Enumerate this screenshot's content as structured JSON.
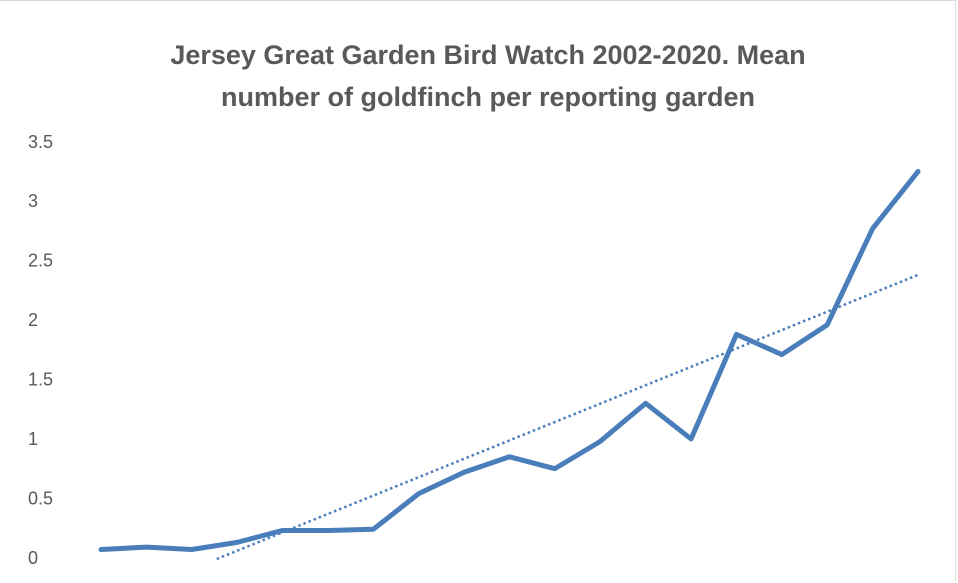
{
  "chart_data": {
    "type": "line",
    "title": "Jersey Great Garden Bird Watch 2002-2020. Mean number of goldfinch per reporting garden",
    "series": [
      {
        "name": "Goldfinch",
        "color": "#4a7ebb",
        "values": [
          0.08,
          0.1,
          0.08,
          0.14,
          0.24,
          0.24,
          0.25,
          0.55,
          0.73,
          0.86,
          0.76,
          0.99,
          1.31,
          1.01,
          1.89,
          1.72,
          1.97,
          2.78,
          3.26
        ]
      }
    ],
    "trendline": "linear",
    "ylim": [
      0,
      3.5
    ],
    "yticks": [
      0,
      0.5,
      1,
      1.5,
      2,
      2.5,
      3,
      3.5
    ],
    "grid": false,
    "legend": false
  }
}
